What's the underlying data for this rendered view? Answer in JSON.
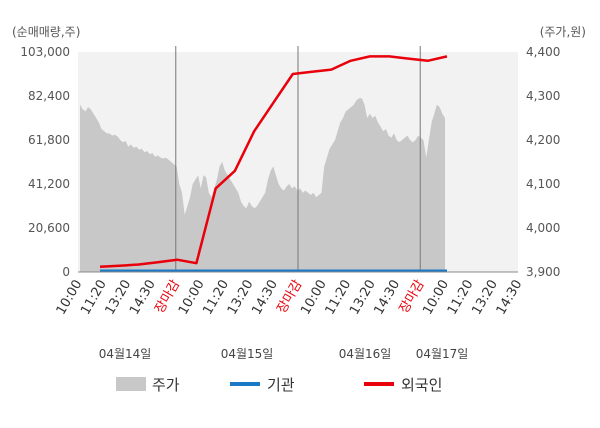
{
  "chart_data": {
    "type": "line",
    "left_axis_label": "(순매매량,주)",
    "right_axis_label": "(주가,원)",
    "y_left_ticks": [
      "103,000",
      "82,400",
      "61,800",
      "41,200",
      "20,600",
      "0"
    ],
    "y_left_range": [
      0,
      103000
    ],
    "y_right_ticks": [
      "4,400",
      "4,300",
      "4,200",
      "4,100",
      "4,000",
      "3,900"
    ],
    "y_right_range": [
      3900,
      4400
    ],
    "x_tick_labels": [
      "10:00",
      "11:20",
      "13:20",
      "14:30",
      "장마감",
      "10:00",
      "11:20",
      "13:20",
      "14:30",
      "장마감",
      "10:00",
      "11:20",
      "13:20",
      "14:30",
      "장마감",
      "10:00",
      "11:20",
      "13:20",
      "14:30"
    ],
    "close_label": "장마감",
    "dates": [
      "04월14일",
      "04월15일",
      "04월16일",
      "04월17일"
    ],
    "legend": [
      "주가",
      "기관",
      "외국인"
    ],
    "colors": {
      "price": "#c8c8c8",
      "institution": "#1a7ac8",
      "foreign": "#e8000b"
    },
    "price_series": [
      4280,
      4270,
      4265,
      4275,
      4270,
      4260,
      4250,
      4240,
      4225,
      4220,
      4215,
      4215,
      4210,
      4212,
      4208,
      4200,
      4195,
      4198,
      4185,
      4190,
      4182,
      4185,
      4178,
      4180,
      4172,
      4175,
      4168,
      4170,
      4162,
      4165,
      4160,
      4158,
      4160,
      4155,
      4150,
      4145,
      4140,
      4100,
      4080,
      4030,
      4050,
      4070,
      4100,
      4110,
      4120,
      4090,
      4120,
      4115,
      4080,
      4070,
      4090,
      4110,
      4140,
      4150,
      4130,
      4120,
      4110,
      4100,
      4090,
      4080,
      4060,
      4050,
      4045,
      4060,
      4050,
      4045,
      4050,
      4060,
      4070,
      4080,
      4110,
      4130,
      4140,
      4120,
      4100,
      4090,
      4085,
      4095,
      4100,
      4090,
      4095,
      4085,
      4090,
      4080,
      4085,
      4080,
      4075,
      4080,
      4070,
      4075,
      4080,
      4140,
      4160,
      4180,
      4190,
      4200,
      4220,
      4240,
      4250,
      4265,
      4270,
      4275,
      4280,
      4290,
      4295,
      4295,
      4280,
      4250,
      4260,
      4250,
      4255,
      4240,
      4230,
      4220,
      4225,
      4210,
      4205,
      4215,
      4200,
      4195,
      4200,
      4205,
      4210,
      4200,
      4195,
      4200,
      4210,
      4205,
      4200,
      4160,
      4200,
      4240,
      4260,
      4280,
      4275,
      4260,
      4250
    ],
    "foreign_series": [
      3912,
      3914,
      3917,
      3922,
      3928,
      3920,
      4090,
      4130,
      4220,
      4285,
      4350,
      4355,
      4360,
      4380,
      4390,
      4390,
      4385,
      4380,
      4390
    ],
    "institution_value": 0
  },
  "legend_items": [
    {
      "key": "price",
      "label": "주가"
    },
    {
      "key": "institution",
      "label": "기관"
    },
    {
      "key": "foreign",
      "label": "외국인"
    }
  ]
}
